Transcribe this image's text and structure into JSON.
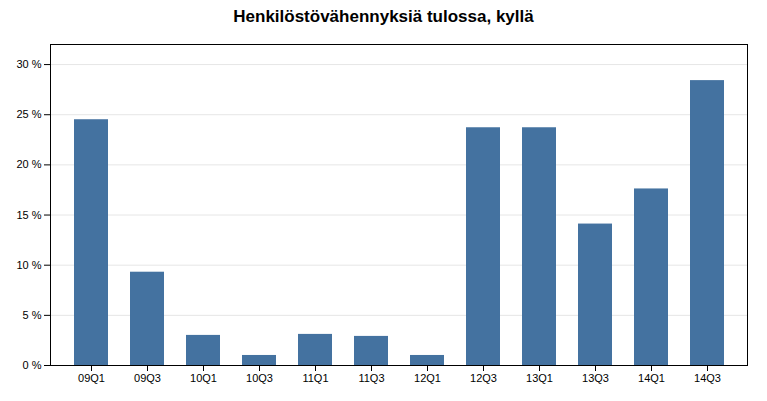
{
  "chart_data": {
    "type": "bar",
    "title": "Henkilöstövähennyksiä tulossa, kyllä",
    "categories": [
      "09Q1",
      "09Q3",
      "10Q1",
      "10Q3",
      "11Q1",
      "11Q3",
      "12Q1",
      "12Q3",
      "13Q1",
      "13Q3",
      "14Q1",
      "14Q3"
    ],
    "values": [
      24.5,
      9.3,
      3.0,
      1.0,
      3.1,
      2.9,
      1.0,
      23.7,
      23.7,
      14.1,
      17.6,
      28.4
    ],
    "color": "#4472a0",
    "ylim": [
      0,
      32
    ],
    "yticks": [
      {
        "value": 0,
        "label": "0 %"
      },
      {
        "value": 5,
        "label": "5 %"
      },
      {
        "value": 10,
        "label": "10 %"
      },
      {
        "value": 15,
        "label": "15 %"
      },
      {
        "value": 20,
        "label": "20 %"
      },
      {
        "value": 25,
        "label": "25 %"
      },
      {
        "value": 30,
        "label": "30 %"
      }
    ],
    "grid": true
  }
}
